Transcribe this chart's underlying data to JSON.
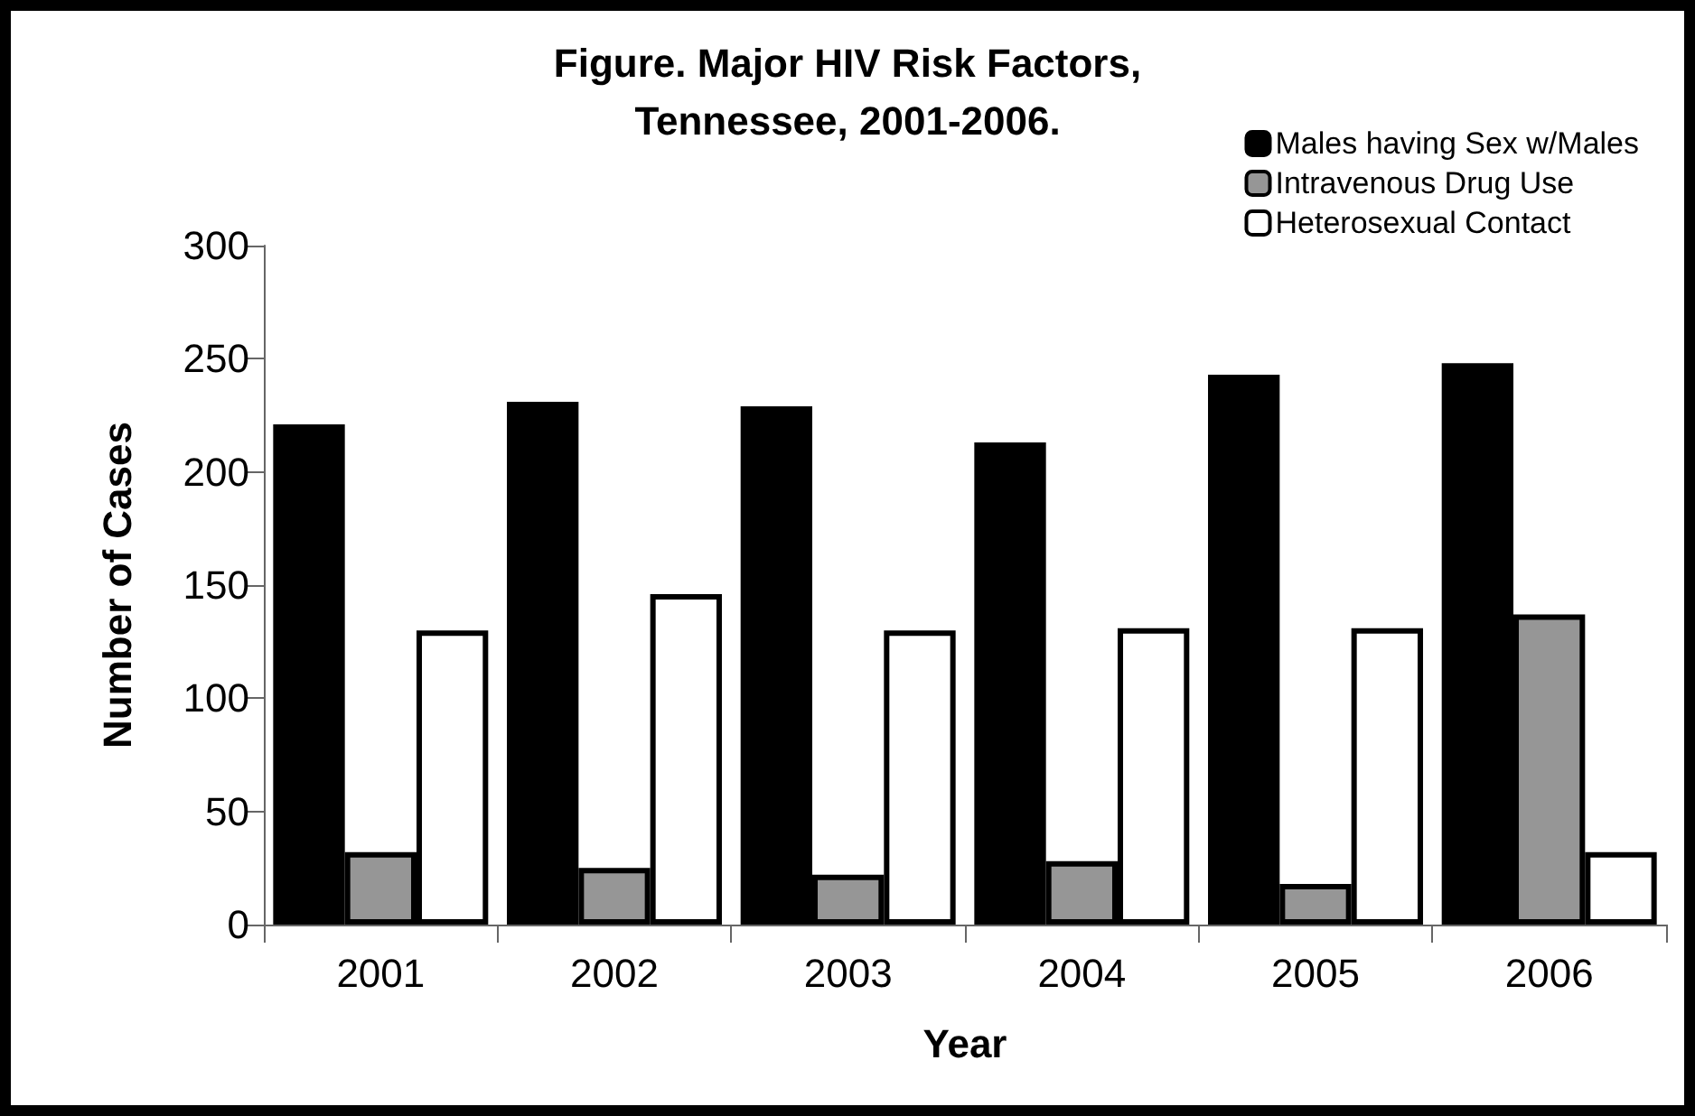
{
  "chart_data": {
    "type": "bar",
    "title": "Figure. Major HIV Risk Factors,\nTennessee, 2001-2006.",
    "xlabel": "Year",
    "ylabel": "Number of Cases",
    "categories": [
      "2001",
      "2002",
      "2003",
      "2004",
      "2005",
      "2006"
    ],
    "series": [
      {
        "name": "Males having Sex w/Males",
        "color": "#000000",
        "values": [
          221,
          231,
          229,
          213,
          243,
          248
        ]
      },
      {
        "name": "Intravenous Drug Use",
        "color": "#969696",
        "values": [
          32,
          25,
          22,
          28,
          18,
          137
        ]
      },
      {
        "name": "Heterosexual Contact",
        "color": "#ffffff",
        "values": [
          130,
          146,
          130,
          131,
          131,
          32
        ]
      }
    ],
    "ylim": [
      0,
      300
    ],
    "yticks": [
      0,
      50,
      100,
      150,
      200,
      250,
      300
    ],
    "grid": false,
    "legend": "top right"
  }
}
